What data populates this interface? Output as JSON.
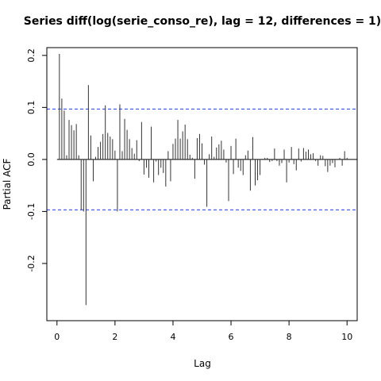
{
  "chart_data": {
    "type": "bar",
    "title": "Series  diff(log(serie_conso_re), lag = 12, differences = 1)",
    "xlabel": "Lag",
    "ylabel": "Partial ACF",
    "xlim": [
      -0.35,
      10.35
    ],
    "ylim": [
      -0.31,
      0.215
    ],
    "x_ticks": [
      0,
      2,
      4,
      6,
      8,
      10
    ],
    "x_tick_labels": [
      "0",
      "2",
      "4",
      "6",
      "8",
      "10"
    ],
    "y_ticks": [
      -0.2,
      -0.1,
      0.0,
      0.1,
      0.2
    ],
    "y_tick_labels": [
      "-0.2",
      "-0.1",
      "0.0",
      "0.1",
      "0.2"
    ],
    "confidence_bounds": [
      0.097,
      -0.097
    ],
    "lag_step": 0.08333333,
    "values": [
      0.203,
      0.117,
      0.094,
      0.008,
      0.076,
      0.066,
      0.056,
      0.068,
      0.008,
      -0.097,
      -0.1,
      -0.28,
      0.143,
      0.046,
      -0.042,
      0.005,
      0.024,
      0.034,
      0.049,
      0.104,
      0.051,
      0.044,
      0.039,
      0.017,
      -0.1,
      0.106,
      0.016,
      0.078,
      0.057,
      0.039,
      0.022,
      0.011,
      0.037,
      -0.003,
      0.072,
      -0.029,
      -0.016,
      -0.035,
      0.063,
      -0.044,
      -0.004,
      -0.03,
      -0.016,
      -0.026,
      -0.052,
      0.016,
      -0.042,
      0.03,
      0.04,
      0.076,
      0.04,
      0.054,
      0.067,
      0.039,
      0.009,
      0.003,
      -0.037,
      0.041,
      0.049,
      0.031,
      -0.01,
      -0.091,
      0.01,
      0.044,
      0.005,
      0.023,
      0.029,
      0.036,
      0.019,
      -0.006,
      -0.08,
      0.026,
      -0.028,
      0.04,
      -0.016,
      -0.022,
      -0.03,
      0.008,
      0.017,
      -0.06,
      0.043,
      -0.05,
      -0.04,
      -0.03,
      0.001,
      0.003,
      0.003,
      -0.005,
      -0.003,
      0.021,
      -0.003,
      -0.012,
      -0.007,
      0.019,
      -0.044,
      -0.006,
      0.024,
      -0.009,
      -0.021,
      0.021,
      -0.004,
      0.022,
      0.015,
      0.019,
      0.01,
      0.012,
      -0.003,
      -0.012,
      0.008,
      0.007,
      -0.013,
      -0.024,
      -0.012,
      -0.007,
      -0.015,
      -0.001,
      0.003,
      -0.012,
      0.016,
      0.003
    ],
    "colors": {
      "bars": "#333333",
      "bounds": "#1f3cff",
      "axis": "#000000"
    },
    "grid": false,
    "legend": "none"
  }
}
